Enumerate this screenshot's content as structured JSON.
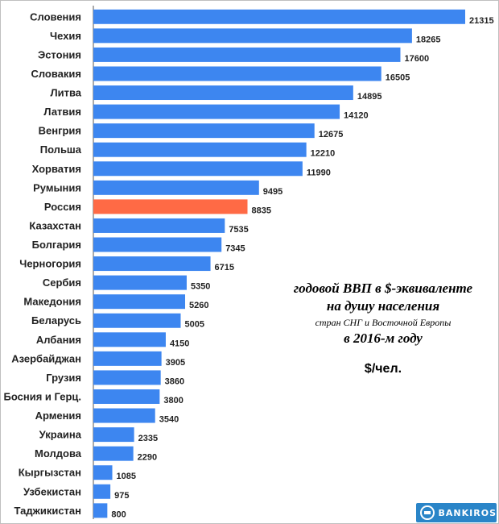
{
  "chart_data": {
    "type": "bar",
    "orientation": "horizontal",
    "categories": [
      "Словения",
      "Чехия",
      "Эстония",
      "Словакия",
      "Литва",
      "Латвия",
      "Венгрия",
      "Польша",
      "Хорватия",
      "Румыния",
      "Россия",
      "Казахстан",
      "Болгария",
      "Черногория",
      "Сербия",
      "Македония",
      "Беларусь",
      "Албания",
      "Азербайджан",
      "Грузия",
      "Босния и Герц.",
      "Армения",
      "Украина",
      "Молдова",
      "Кыргызстан",
      "Узбекистан",
      "Таджикистан"
    ],
    "values": [
      21315,
      18265,
      17600,
      16505,
      14895,
      14120,
      12675,
      12210,
      11990,
      9495,
      8835,
      7535,
      7345,
      6715,
      5350,
      5260,
      5005,
      4150,
      3905,
      3860,
      3800,
      3540,
      2335,
      2290,
      1085,
      975,
      800
    ],
    "highlight": "Россия",
    "colors": {
      "bar": "#3d86f0",
      "highlight": "#ff6a45"
    },
    "xlim": [
      0,
      21315
    ],
    "grid": false,
    "legend": "none"
  },
  "annotation": {
    "line1": "годовой ВВП в $-эквиваленте",
    "line2": "на душу населения",
    "line3": "стран СНГ и Восточной Европы",
    "line4": "в 2016-м году",
    "unit": "$/чел."
  },
  "logo": {
    "text": "BANKIROS",
    "icon": "bankiros-logo-icon"
  }
}
